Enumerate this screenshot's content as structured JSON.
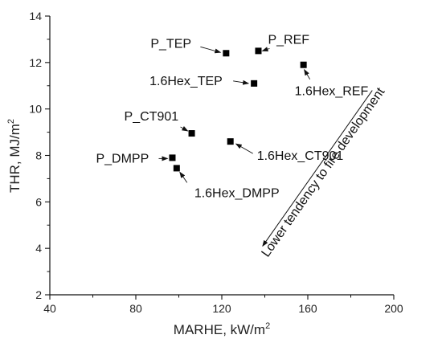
{
  "chart_data": {
    "type": "scatter",
    "xlabel": "MARHE, kW/m",
    "xlabel_sup": "2",
    "ylabel": "THR, MJ/m",
    "ylabel_sup": "2",
    "xlim": [
      40,
      200
    ],
    "ylim": [
      2,
      14
    ],
    "xticks": [
      40,
      80,
      120,
      160,
      200
    ],
    "yticks": [
      2,
      4,
      6,
      8,
      10,
      12,
      14
    ],
    "grid": false,
    "marker": "square",
    "marker_color": "#000000",
    "points": [
      {
        "label": "P_TEP",
        "x": 122,
        "y": 12.4
      },
      {
        "label": "P_REF",
        "x": 137,
        "y": 12.5
      },
      {
        "label": "1.6Hex_REF",
        "x": 158,
        "y": 11.9
      },
      {
        "label": "1.6Hex_TEP",
        "x": 135,
        "y": 11.1
      },
      {
        "label": "P_CT901",
        "x": 106,
        "y": 8.95
      },
      {
        "label": "1.6Hex_CT901",
        "x": 124,
        "y": 8.6
      },
      {
        "label": "P_DMPP",
        "x": 97,
        "y": 7.9
      },
      {
        "label": "1.6Hex_DMPP",
        "x": 99,
        "y": 7.45
      }
    ],
    "annotations": [
      {
        "text": "Lower tendency to fire development",
        "arrow_from": [
          190,
          10.8
        ],
        "arrow_to": [
          139,
          4.1
        ]
      }
    ]
  }
}
